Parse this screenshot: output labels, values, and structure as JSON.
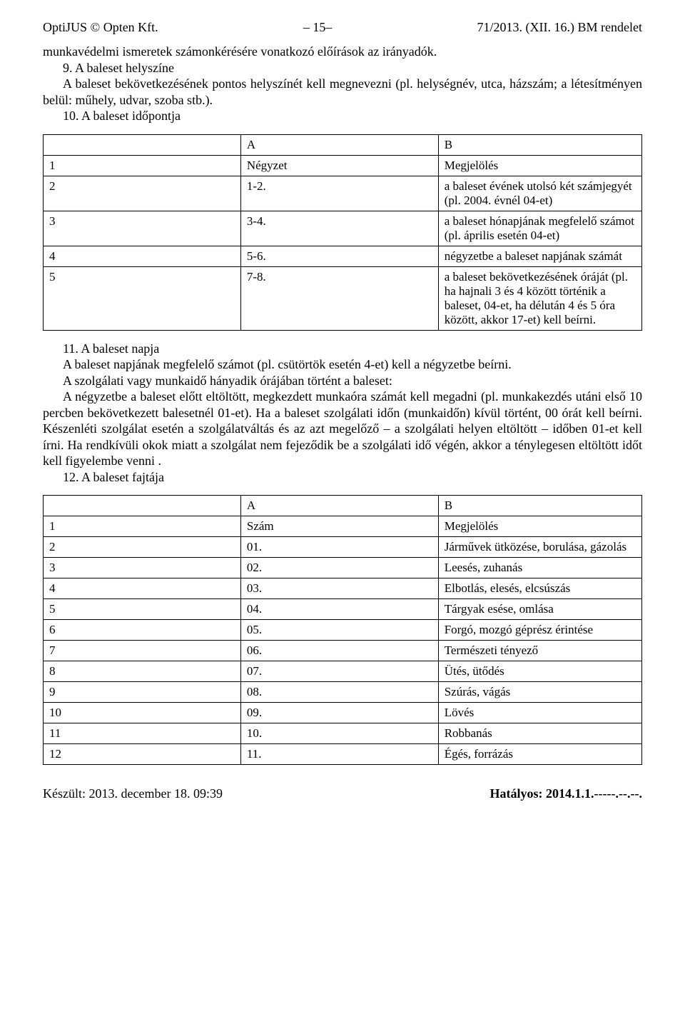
{
  "header": {
    "left": "OptiJUS © Opten Kft.",
    "center": "– 15–",
    "right": "71/2013. (XII. 16.) BM rendelet"
  },
  "para1": "munkavédelmi ismeretek számonkérésére vonatkozó előírások az irányadók.",
  "para2": "9. A baleset helyszíne",
  "para3": "A baleset bekövetkezésének pontos helyszínét kell megnevezni (pl. helységnév, utca, házszám; a létesítményen belül: műhely, udvar, szoba stb.).",
  "para4": "10. A baleset időpontja",
  "table1": {
    "rows": [
      [
        "",
        "A",
        "B"
      ],
      [
        "1",
        "Négyzet",
        "Megjelölés"
      ],
      [
        "2",
        "1-2.",
        "a baleset évének utolsó két számjegyét (pl. 2004. évnél 04-et)"
      ],
      [
        "3",
        "3-4.",
        "a baleset hónapjának megfelelő számot (pl. április esetén 04-et)"
      ],
      [
        "4",
        "5-6.",
        "négyzetbe a baleset napjának számát"
      ],
      [
        "5",
        "7-8.",
        "a baleset bekövetkezésének óráját (pl. ha hajnali 3 és 4 között történik a baleset, 04-et, ha délután 4 és 5 óra között, akkor 17-et) kell beírni."
      ]
    ]
  },
  "para5": "11. A baleset napja",
  "para6": "A baleset napjának megfelelő számot (pl. csütörtök esetén 4-et) kell a négyzetbe beírni.",
  "para7": "A szolgálati vagy munkaidő hányadik órájában történt a baleset:",
  "para8": "A négyzetbe a baleset előtt eltöltött, megkezdett munkaóra számát kell megadni (pl. munkakezdés utáni első 10 percben bekövetkezett balesetnél 01-et). Ha a baleset szolgálati időn (munkaidőn) kívül történt, 00 órát kell beírni. Készenléti szolgálat esetén a szolgálatváltás és az azt megelőző – a szolgálati helyen eltöltött – időben 01-et kell írni. Ha rendkívüli okok miatt a szolgálat nem fejeződik be a szolgálati idő végén, akkor a ténylegesen eltöltött időt kell figyelembe venni .",
  "para9": "12. A baleset fajtája",
  "table2": {
    "rows": [
      [
        "",
        "A",
        "B"
      ],
      [
        "1",
        "Szám",
        "Megjelölés"
      ],
      [
        "2",
        "01.",
        "Járművek ütközése, borulása, gázolás"
      ],
      [
        "3",
        "02.",
        "Leesés, zuhanás"
      ],
      [
        "4",
        "03.",
        "Elbotlás, elesés, elcsúszás"
      ],
      [
        "5",
        "04.",
        "Tárgyak esése, omlása"
      ],
      [
        "6",
        "05.",
        "Forgó, mozgó géprész érintése"
      ],
      [
        "7",
        "06.",
        "Természeti tényező"
      ],
      [
        "8",
        "07.",
        "Ütés, ütődés"
      ],
      [
        "9",
        "08.",
        "Szúrás, vágás"
      ],
      [
        "10",
        "09.",
        "Lövés"
      ],
      [
        "11",
        "10.",
        "Robbanás"
      ],
      [
        "12",
        "11.",
        "Égés, forrázás"
      ]
    ]
  },
  "footer": {
    "left": "Készült: 2013. december 18. 09:39",
    "right": "Hatályos: 2014.1.1.-----.--.--."
  }
}
